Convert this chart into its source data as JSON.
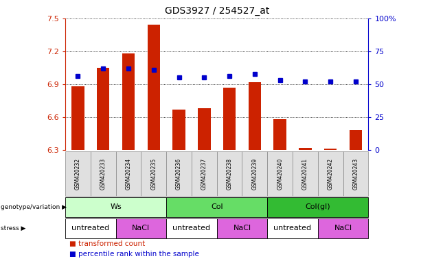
{
  "title": "GDS3927 / 254527_at",
  "samples": [
    "GSM420232",
    "GSM420233",
    "GSM420234",
    "GSM420235",
    "GSM420236",
    "GSM420237",
    "GSM420238",
    "GSM420239",
    "GSM420240",
    "GSM420241",
    "GSM420242",
    "GSM420243"
  ],
  "red_values": [
    6.88,
    7.05,
    7.18,
    7.44,
    6.67,
    6.68,
    6.87,
    6.92,
    6.58,
    6.32,
    6.31,
    6.48
  ],
  "blue_values": [
    56,
    62,
    62,
    61,
    55,
    55,
    56,
    58,
    53,
    52,
    52,
    52
  ],
  "ymin": 6.3,
  "ymax": 7.5,
  "yticks_red": [
    6.3,
    6.6,
    6.9,
    7.2,
    7.5
  ],
  "yticks_blue": [
    0,
    25,
    50,
    75,
    100
  ],
  "genotype_groups": [
    {
      "label": "Ws",
      "start": 0,
      "end": 3,
      "color": "#ccffcc"
    },
    {
      "label": "Col",
      "start": 4,
      "end": 7,
      "color": "#66dd66"
    },
    {
      "label": "Col(gl)",
      "start": 8,
      "end": 11,
      "color": "#33bb33"
    }
  ],
  "stress_groups": [
    {
      "label": "untreated",
      "start": 0,
      "end": 1,
      "color": "#ffffff"
    },
    {
      "label": "NaCl",
      "start": 2,
      "end": 3,
      "color": "#dd66dd"
    },
    {
      "label": "untreated",
      "start": 4,
      "end": 5,
      "color": "#ffffff"
    },
    {
      "label": "NaCl",
      "start": 6,
      "end": 7,
      "color": "#dd66dd"
    },
    {
      "label": "untreated",
      "start": 8,
      "end": 9,
      "color": "#ffffff"
    },
    {
      "label": "NaCl",
      "start": 10,
      "end": 11,
      "color": "#dd66dd"
    }
  ],
  "bar_color": "#cc2200",
  "dot_color": "#0000cc",
  "bar_width": 0.5,
  "bg_color": "#ffffff",
  "label_genotype": "genotype/variation",
  "label_stress": "stress",
  "legend_red": "transformed count",
  "legend_blue": "percentile rank within the sample"
}
